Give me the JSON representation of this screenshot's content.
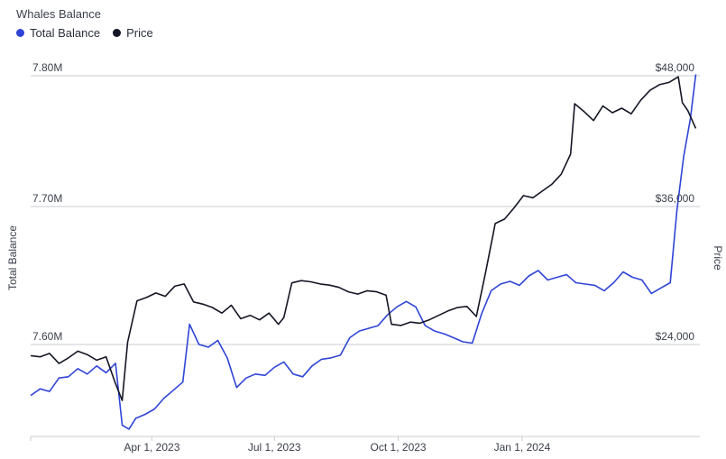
{
  "chart_data": {
    "type": "line",
    "title": "Whales Balance",
    "ylabel_left": "Total Balance",
    "ylabel_right": "Price",
    "x_ticks": [
      "Apr 1, 2023",
      "Jul 1, 2023",
      "Oct 1, 2023",
      "Jan 1, 2024"
    ],
    "y_left_ticks": [
      "7.60M",
      "7.70M",
      "7.80M"
    ],
    "y_right_ticks": [
      "$24,000",
      "$36,000",
      "$48,000"
    ],
    "y_left_range": [
      7.535,
      7.803
    ],
    "y_right_range": [
      18800,
      48000
    ],
    "grid": true,
    "legend_position": "top-left",
    "series": [
      {
        "name": "Total Balance",
        "color": "#2f44d6",
        "points": [
          [
            "2023-01-01",
            7.562
          ],
          [
            "2023-01-08",
            7.567
          ],
          [
            "2023-01-15",
            7.565
          ],
          [
            "2023-01-22",
            7.575
          ],
          [
            "2023-01-29",
            7.576
          ],
          [
            "2023-02-05",
            7.582
          ],
          [
            "2023-02-12",
            7.578
          ],
          [
            "2023-02-19",
            7.584
          ],
          [
            "2023-02-26",
            7.579
          ],
          [
            "2023-03-05",
            7.586
          ],
          [
            "2023-03-10",
            7.54
          ],
          [
            "2023-03-15",
            7.537
          ],
          [
            "2023-03-20",
            7.545
          ],
          [
            "2023-03-27",
            7.548
          ],
          [
            "2023-04-03",
            7.552
          ],
          [
            "2023-04-10",
            7.56
          ],
          [
            "2023-04-17",
            7.566
          ],
          [
            "2023-04-24",
            7.572
          ],
          [
            "2023-04-29",
            7.615
          ],
          [
            "2023-05-06",
            7.6
          ],
          [
            "2023-05-13",
            7.598
          ],
          [
            "2023-05-20",
            7.603
          ],
          [
            "2023-05-27",
            7.59
          ],
          [
            "2023-06-03",
            7.568
          ],
          [
            "2023-06-10",
            7.575
          ],
          [
            "2023-06-17",
            7.578
          ],
          [
            "2023-06-24",
            7.577
          ],
          [
            "2023-07-01",
            7.583
          ],
          [
            "2023-07-08",
            7.587
          ],
          [
            "2023-07-15",
            7.578
          ],
          [
            "2023-07-22",
            7.576
          ],
          [
            "2023-07-29",
            7.584
          ],
          [
            "2023-08-05",
            7.589
          ],
          [
            "2023-08-12",
            7.59
          ],
          [
            "2023-08-19",
            7.592
          ],
          [
            "2023-08-26",
            7.605
          ],
          [
            "2023-09-02",
            7.61
          ],
          [
            "2023-09-09",
            7.612
          ],
          [
            "2023-09-16",
            7.614
          ],
          [
            "2023-09-23",
            7.622
          ],
          [
            "2023-09-30",
            7.628
          ],
          [
            "2023-10-07",
            7.632
          ],
          [
            "2023-10-14",
            7.628
          ],
          [
            "2023-10-21",
            7.614
          ],
          [
            "2023-10-28",
            7.61
          ],
          [
            "2023-11-04",
            7.608
          ],
          [
            "2023-11-11",
            7.605
          ],
          [
            "2023-11-18",
            7.602
          ],
          [
            "2023-11-25",
            7.601
          ],
          [
            "2023-12-02",
            7.623
          ],
          [
            "2023-12-09",
            7.64
          ],
          [
            "2023-12-16",
            7.645
          ],
          [
            "2023-12-23",
            7.647
          ],
          [
            "2023-12-30",
            7.644
          ],
          [
            "2024-01-06",
            7.651
          ],
          [
            "2024-01-13",
            7.655
          ],
          [
            "2024-01-20",
            7.648
          ],
          [
            "2024-01-27",
            7.65
          ],
          [
            "2024-02-03",
            7.652
          ],
          [
            "2024-02-10",
            7.646
          ],
          [
            "2024-02-17",
            7.645
          ],
          [
            "2024-02-24",
            7.644
          ],
          [
            "2024-03-02",
            7.64
          ],
          [
            "2024-03-09",
            7.646
          ],
          [
            "2024-03-16",
            7.654
          ],
          [
            "2024-03-23",
            7.65
          ],
          [
            "2024-03-30",
            7.648
          ],
          [
            "2024-04-06",
            7.638
          ],
          [
            "2024-04-13",
            7.642
          ],
          [
            "2024-04-20",
            7.646
          ],
          [
            "2024-04-25",
            7.7
          ],
          [
            "2024-04-30",
            7.74
          ],
          [
            "2024-05-05",
            7.768
          ],
          [
            "2024-05-09",
            7.801
          ]
        ]
      },
      {
        "name": "Price",
        "color": "#141625",
        "points": [
          [
            "2023-01-01",
            23000
          ],
          [
            "2023-01-08",
            22900
          ],
          [
            "2023-01-15",
            23200
          ],
          [
            "2023-01-22",
            22300
          ],
          [
            "2023-01-29",
            22800
          ],
          [
            "2023-02-05",
            23400
          ],
          [
            "2023-02-12",
            23100
          ],
          [
            "2023-02-19",
            22600
          ],
          [
            "2023-02-26",
            22900
          ],
          [
            "2023-03-05",
            20500
          ],
          [
            "2023-03-10",
            19000
          ],
          [
            "2023-03-14",
            24200
          ],
          [
            "2023-03-21",
            27900
          ],
          [
            "2023-03-28",
            28200
          ],
          [
            "2023-04-04",
            28600
          ],
          [
            "2023-04-11",
            28300
          ],
          [
            "2023-04-18",
            29200
          ],
          [
            "2023-04-25",
            29400
          ],
          [
            "2023-05-02",
            27800
          ],
          [
            "2023-05-09",
            27600
          ],
          [
            "2023-05-16",
            27300
          ],
          [
            "2023-05-23",
            26800
          ],
          [
            "2023-05-30",
            27500
          ],
          [
            "2023-06-06",
            26300
          ],
          [
            "2023-06-13",
            26600
          ],
          [
            "2023-06-20",
            26200
          ],
          [
            "2023-06-27",
            26800
          ],
          [
            "2023-07-04",
            25800
          ],
          [
            "2023-07-08",
            26400
          ],
          [
            "2023-07-14",
            29500
          ],
          [
            "2023-07-21",
            29700
          ],
          [
            "2023-07-28",
            29600
          ],
          [
            "2023-08-04",
            29400
          ],
          [
            "2023-08-11",
            29300
          ],
          [
            "2023-08-18",
            29100
          ],
          [
            "2023-08-25",
            28700
          ],
          [
            "2023-09-01",
            28500
          ],
          [
            "2023-09-08",
            28800
          ],
          [
            "2023-09-15",
            28700
          ],
          [
            "2023-09-22",
            28400
          ],
          [
            "2023-09-26",
            25800
          ],
          [
            "2023-10-03",
            25700
          ],
          [
            "2023-10-10",
            26000
          ],
          [
            "2023-10-17",
            25900
          ],
          [
            "2023-10-24",
            26200
          ],
          [
            "2023-10-31",
            26600
          ],
          [
            "2023-11-07",
            27000
          ],
          [
            "2023-11-14",
            27300
          ],
          [
            "2023-11-21",
            27400
          ],
          [
            "2023-11-28",
            26500
          ],
          [
            "2023-12-05",
            30500
          ],
          [
            "2023-12-12",
            34800
          ],
          [
            "2023-12-19",
            35200
          ],
          [
            "2023-12-26",
            36200
          ],
          [
            "2024-01-02",
            37300
          ],
          [
            "2024-01-09",
            37100
          ],
          [
            "2024-01-16",
            37700
          ],
          [
            "2024-01-23",
            38300
          ],
          [
            "2024-01-30",
            39200
          ],
          [
            "2024-02-06",
            41000
          ],
          [
            "2024-02-09",
            45500
          ],
          [
            "2024-02-16",
            44800
          ],
          [
            "2024-02-23",
            44000
          ],
          [
            "2024-03-01",
            45300
          ],
          [
            "2024-03-08",
            44700
          ],
          [
            "2024-03-15",
            45100
          ],
          [
            "2024-03-22",
            44600
          ],
          [
            "2024-03-29",
            45800
          ],
          [
            "2024-04-05",
            46700
          ],
          [
            "2024-04-12",
            47200
          ],
          [
            "2024-04-19",
            47400
          ],
          [
            "2024-04-26",
            47900
          ],
          [
            "2024-04-29",
            45600
          ],
          [
            "2024-05-03",
            44900
          ],
          [
            "2024-05-09",
            43300
          ]
        ]
      }
    ]
  }
}
